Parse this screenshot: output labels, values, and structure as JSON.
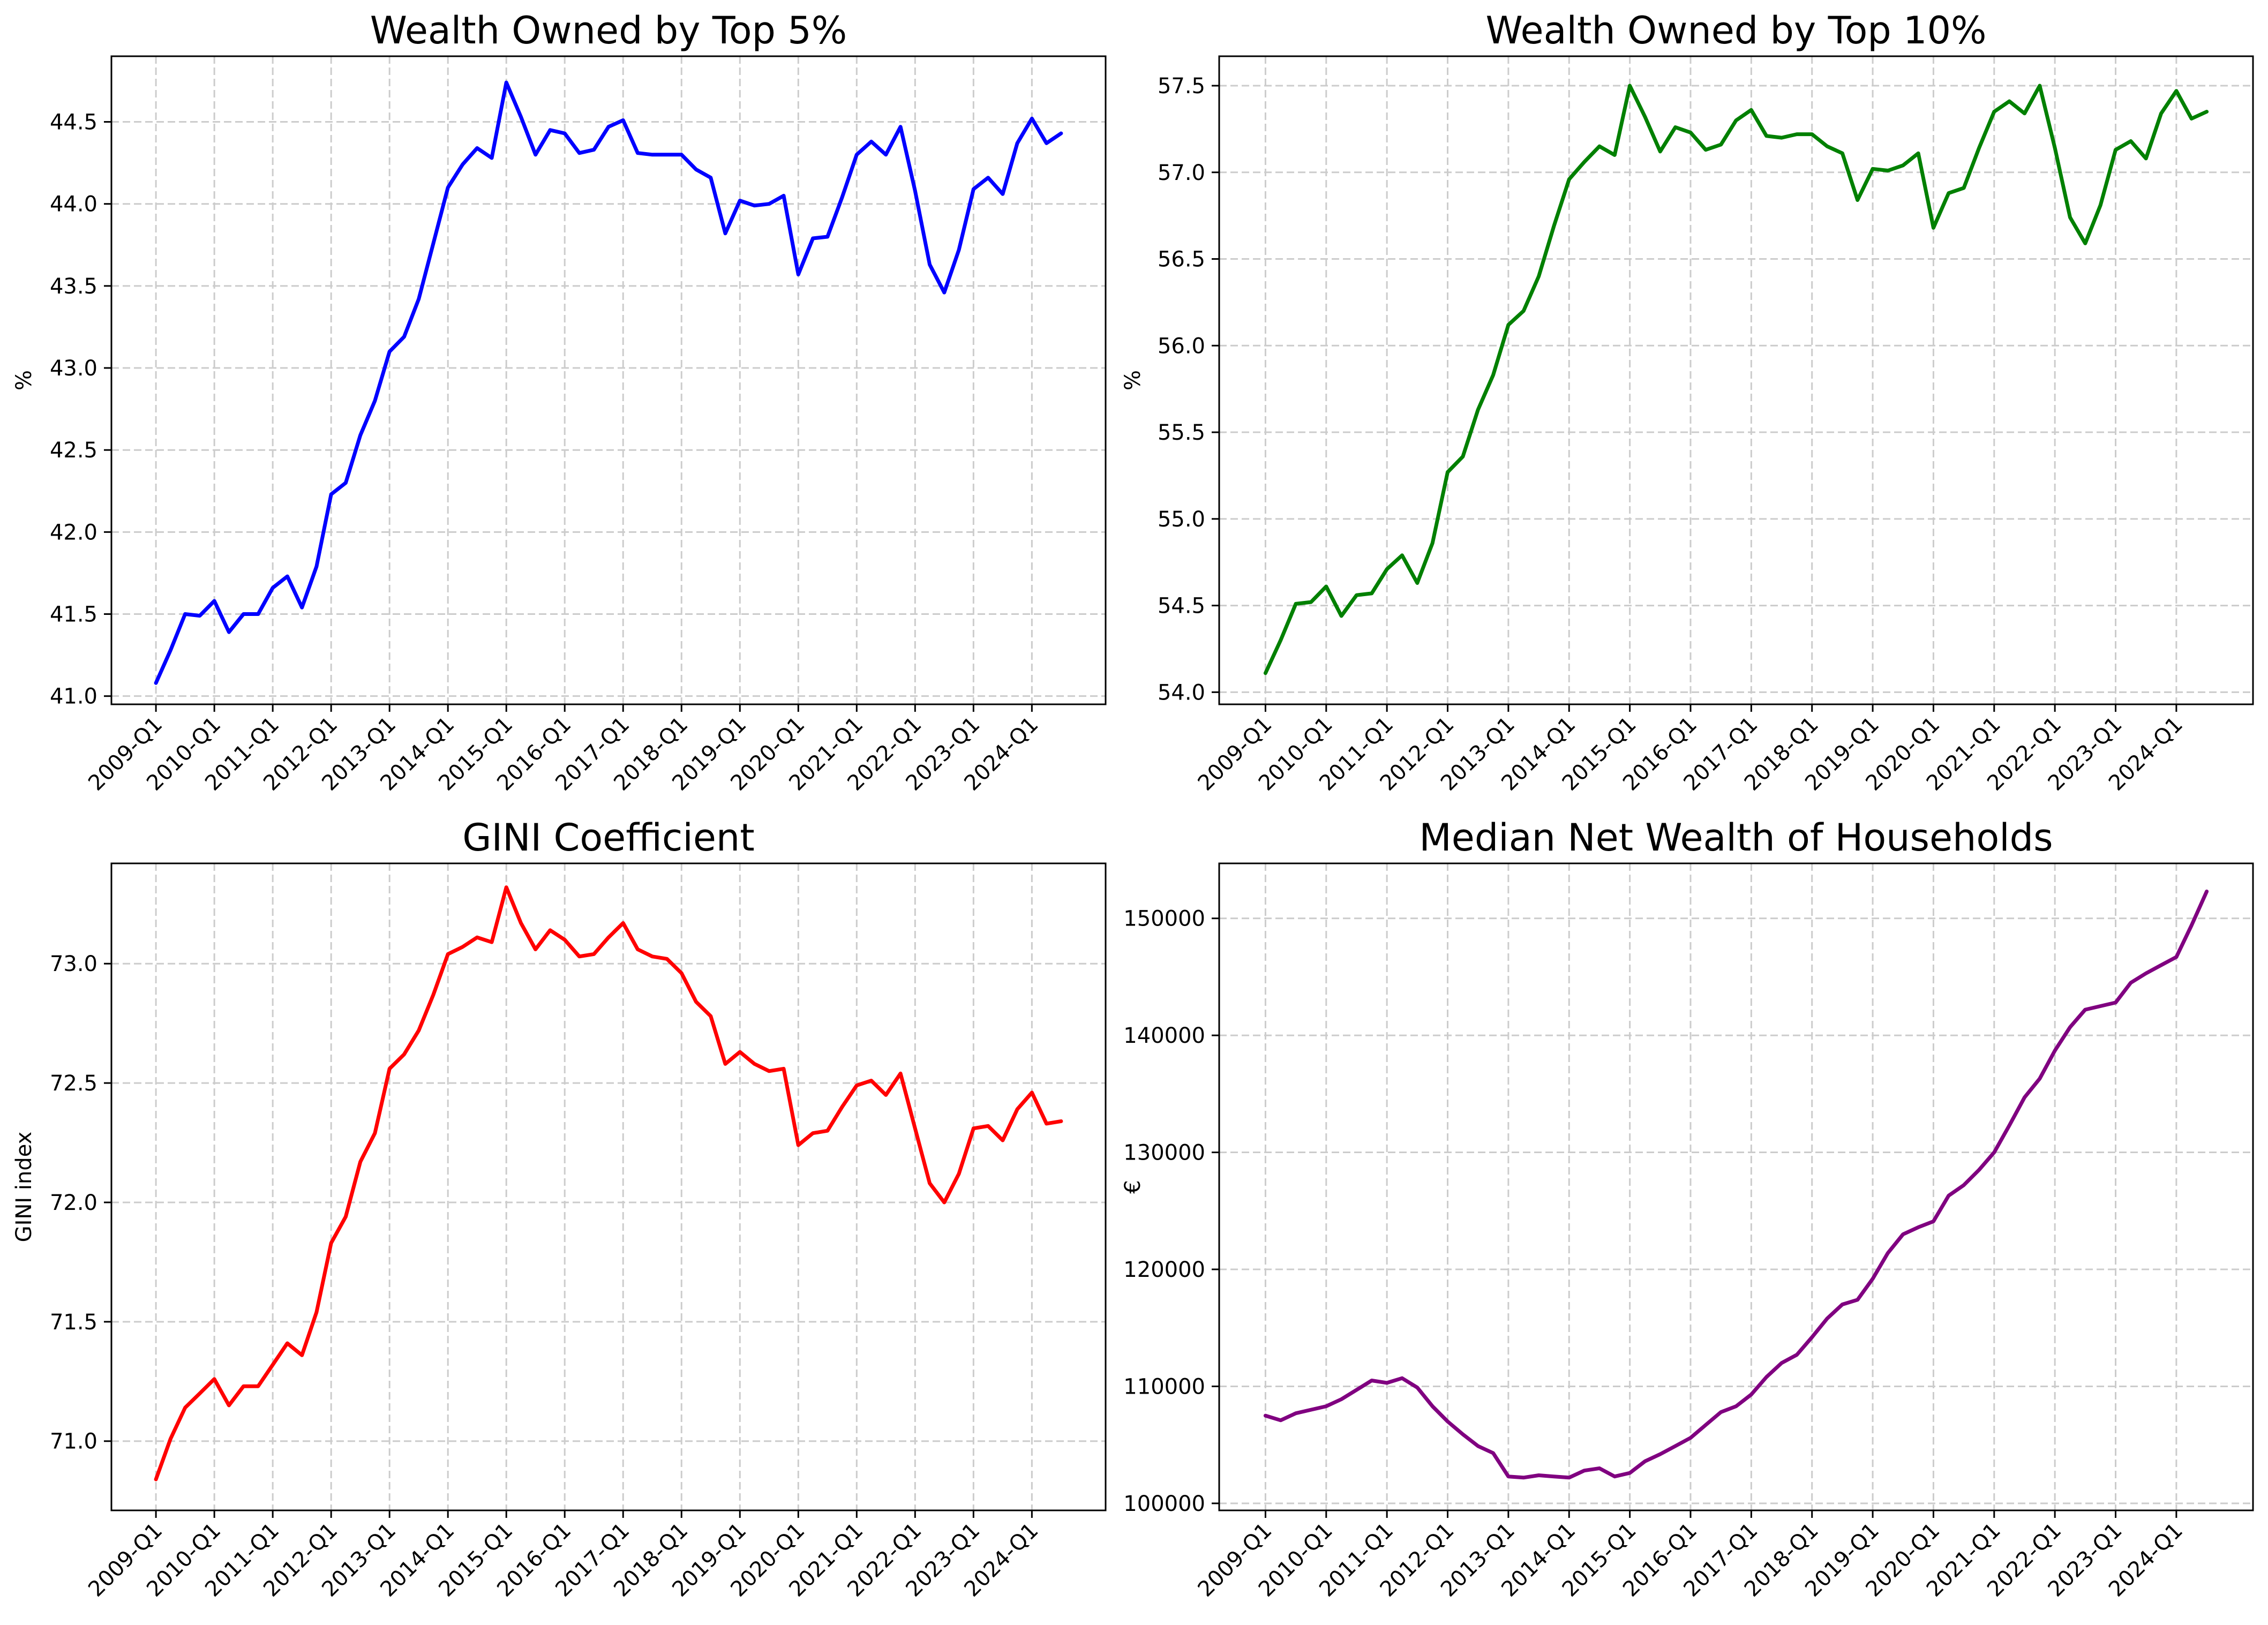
{
  "chart_data": [
    {
      "type": "line",
      "title": "Wealth Owned by Top 5%",
      "xlabel": "",
      "ylabel": "%",
      "ylim": [
        40.95,
        44.9
      ],
      "yticks": [
        41.0,
        41.5,
        42.0,
        42.5,
        43.0,
        43.5,
        44.0,
        44.5
      ],
      "ytick_labels": [
        "41.0",
        "41.5",
        "42.0",
        "42.5",
        "43.0",
        "43.5",
        "44.0",
        "44.5"
      ],
      "xtick_labels": [
        "2009-Q1",
        "2010-Q1",
        "2011-Q1",
        "2012-Q1",
        "2013-Q1",
        "2014-Q1",
        "2015-Q1",
        "2016-Q1",
        "2017-Q1",
        "2018-Q1",
        "2019-Q1",
        "2020-Q1",
        "2021-Q1",
        "2022-Q1",
        "2023-Q1",
        "2024-Q1"
      ],
      "grid": true,
      "color": "#0000ff",
      "values": [
        41.08,
        41.28,
        41.5,
        41.49,
        41.58,
        41.39,
        41.5,
        41.5,
        41.66,
        41.73,
        41.54,
        41.79,
        42.23,
        42.3,
        42.59,
        42.8,
        43.1,
        43.19,
        43.42,
        43.76,
        44.1,
        44.24,
        44.34,
        44.28,
        44.74,
        44.53,
        44.3,
        44.45,
        44.43,
        44.31,
        44.33,
        44.47,
        44.51,
        44.31,
        44.3,
        44.3,
        44.3,
        44.21,
        44.16,
        43.82,
        44.02,
        43.99,
        44.0,
        44.05,
        43.57,
        43.79,
        43.8,
        44.04,
        44.3,
        44.38,
        44.3,
        44.47,
        44.08,
        43.63,
        43.46,
        43.72,
        44.09,
        44.16,
        44.06,
        44.37,
        44.52,
        44.37,
        44.43
      ]
    },
    {
      "type": "line",
      "title": "Wealth Owned by Top 10%",
      "xlabel": "",
      "ylabel": "%",
      "ylim": [
        53.93,
        57.67
      ],
      "yticks": [
        54.0,
        54.5,
        55.0,
        55.5,
        56.0,
        56.5,
        57.0,
        57.5
      ],
      "ytick_labels": [
        "54.0",
        "54.5",
        "55.0",
        "55.5",
        "56.0",
        "56.5",
        "57.0",
        "57.5"
      ],
      "xtick_labels": [
        "2009-Q1",
        "2010-Q1",
        "2011-Q1",
        "2012-Q1",
        "2013-Q1",
        "2014-Q1",
        "2015-Q1",
        "2016-Q1",
        "2017-Q1",
        "2018-Q1",
        "2019-Q1",
        "2020-Q1",
        "2021-Q1",
        "2022-Q1",
        "2023-Q1",
        "2024-Q1"
      ],
      "grid": true,
      "color": "#008000",
      "values": [
        54.11,
        54.3,
        54.51,
        54.52,
        54.61,
        54.44,
        54.56,
        54.57,
        54.71,
        54.79,
        54.63,
        54.86,
        55.27,
        55.36,
        55.63,
        55.83,
        56.12,
        56.2,
        56.4,
        56.69,
        56.96,
        57.06,
        57.15,
        57.1,
        57.5,
        57.32,
        57.12,
        57.26,
        57.23,
        57.13,
        57.16,
        57.3,
        57.36,
        57.21,
        57.2,
        57.22,
        57.22,
        57.15,
        57.11,
        56.84,
        57.02,
        57.01,
        57.04,
        57.11,
        56.68,
        56.88,
        56.91,
        57.14,
        57.35,
        57.41,
        57.34,
        57.5,
        57.14,
        56.74,
        56.59,
        56.81,
        57.13,
        57.18,
        57.08,
        57.34,
        57.47,
        57.31,
        57.35
      ]
    },
    {
      "type": "line",
      "title": "GINI Coefficient",
      "xlabel": "",
      "ylabel": "GINI index",
      "ylim": [
        70.71,
        73.42
      ],
      "yticks": [
        71.0,
        71.5,
        72.0,
        72.5,
        73.0
      ],
      "ytick_labels": [
        "71.0",
        "71.5",
        "72.0",
        "72.5",
        "73.0"
      ],
      "xtick_labels": [
        "2009-Q1",
        "2010-Q1",
        "2011-Q1",
        "2012-Q1",
        "2013-Q1",
        "2014-Q1",
        "2015-Q1",
        "2016-Q1",
        "2017-Q1",
        "2018-Q1",
        "2019-Q1",
        "2020-Q1",
        "2021-Q1",
        "2022-Q1",
        "2023-Q1",
        "2024-Q1"
      ],
      "grid": true,
      "color": "#ff0000",
      "values": [
        70.84,
        71.01,
        71.14,
        71.2,
        71.26,
        71.15,
        71.23,
        71.23,
        71.32,
        71.41,
        71.36,
        71.54,
        71.83,
        71.94,
        72.17,
        72.29,
        72.56,
        72.62,
        72.72,
        72.87,
        73.04,
        73.07,
        73.11,
        73.09,
        73.32,
        73.17,
        73.06,
        73.14,
        73.1,
        73.03,
        73.04,
        73.11,
        73.17,
        73.06,
        73.03,
        73.02,
        72.96,
        72.84,
        72.78,
        72.58,
        72.63,
        72.58,
        72.55,
        72.56,
        72.24,
        72.29,
        72.3,
        72.4,
        72.49,
        72.51,
        72.45,
        72.54,
        72.31,
        72.08,
        72.0,
        72.12,
        72.31,
        72.32,
        72.26,
        72.39,
        72.46,
        72.33,
        72.34
      ]
    },
    {
      "type": "line",
      "title": "Median Net Wealth of Households",
      "xlabel": "",
      "ylabel": "€",
      "ylim": [
        99400,
        154700
      ],
      "yticks": [
        100000,
        110000,
        120000,
        130000,
        140000,
        150000
      ],
      "ytick_labels": [
        "100000",
        "110000",
        "120000",
        "130000",
        "140000",
        "150000"
      ],
      "xtick_labels": [
        "2009-Q1",
        "2010-Q1",
        "2011-Q1",
        "2012-Q1",
        "2013-Q1",
        "2014-Q1",
        "2015-Q1",
        "2016-Q1",
        "2017-Q1",
        "2018-Q1",
        "2019-Q1",
        "2020-Q1",
        "2021-Q1",
        "2022-Q1",
        "2023-Q1",
        "2024-Q1"
      ],
      "grid": true,
      "color": "#800080",
      "values": [
        107500,
        107100,
        107700,
        108000,
        108300,
        108900,
        109700,
        110500,
        110300,
        110700,
        109900,
        108300,
        107000,
        105900,
        104900,
        104300,
        102300,
        102200,
        102400,
        102300,
        102200,
        102800,
        103000,
        102300,
        102600,
        103600,
        104200,
        104900,
        105600,
        106700,
        107800,
        108300,
        109300,
        110800,
        112000,
        112700,
        114200,
        115800,
        117000,
        117400,
        119200,
        121400,
        123000,
        123600,
        124100,
        126300,
        127200,
        128500,
        130000,
        132300,
        134700,
        136300,
        138700,
        140700,
        142200,
        142500,
        142800,
        144500,
        145300,
        146000,
        146700,
        149400,
        152300
      ]
    }
  ]
}
